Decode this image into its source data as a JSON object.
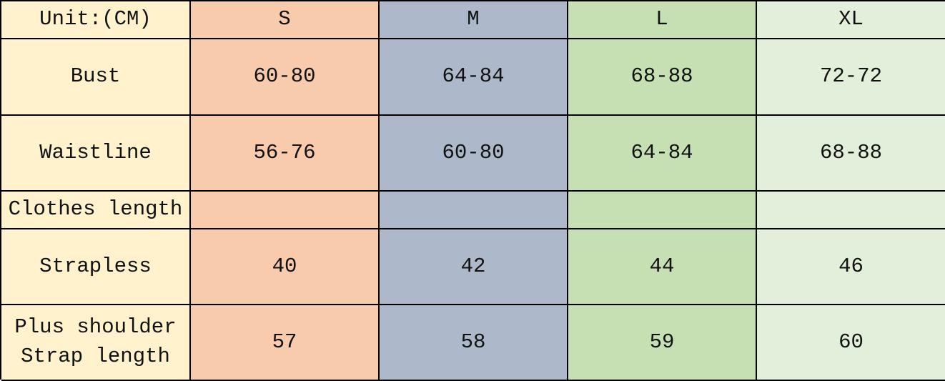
{
  "table": {
    "header": [
      "Unit:(CM)",
      "S",
      "M",
      "L",
      "XL"
    ],
    "rows": [
      [
        "Bust",
        "60-80",
        "64-84",
        "68-88",
        "72-72"
      ],
      [
        "Waistline",
        "56-76",
        "60-80",
        "64-84",
        "68-88"
      ],
      [
        "Clothes length",
        null,
        null,
        null,
        null
      ],
      [
        "Strapless",
        40,
        42,
        44,
        46
      ],
      [
        "Plus shoulder\nStrap length",
        57,
        58,
        59,
        60
      ]
    ]
  }
}
